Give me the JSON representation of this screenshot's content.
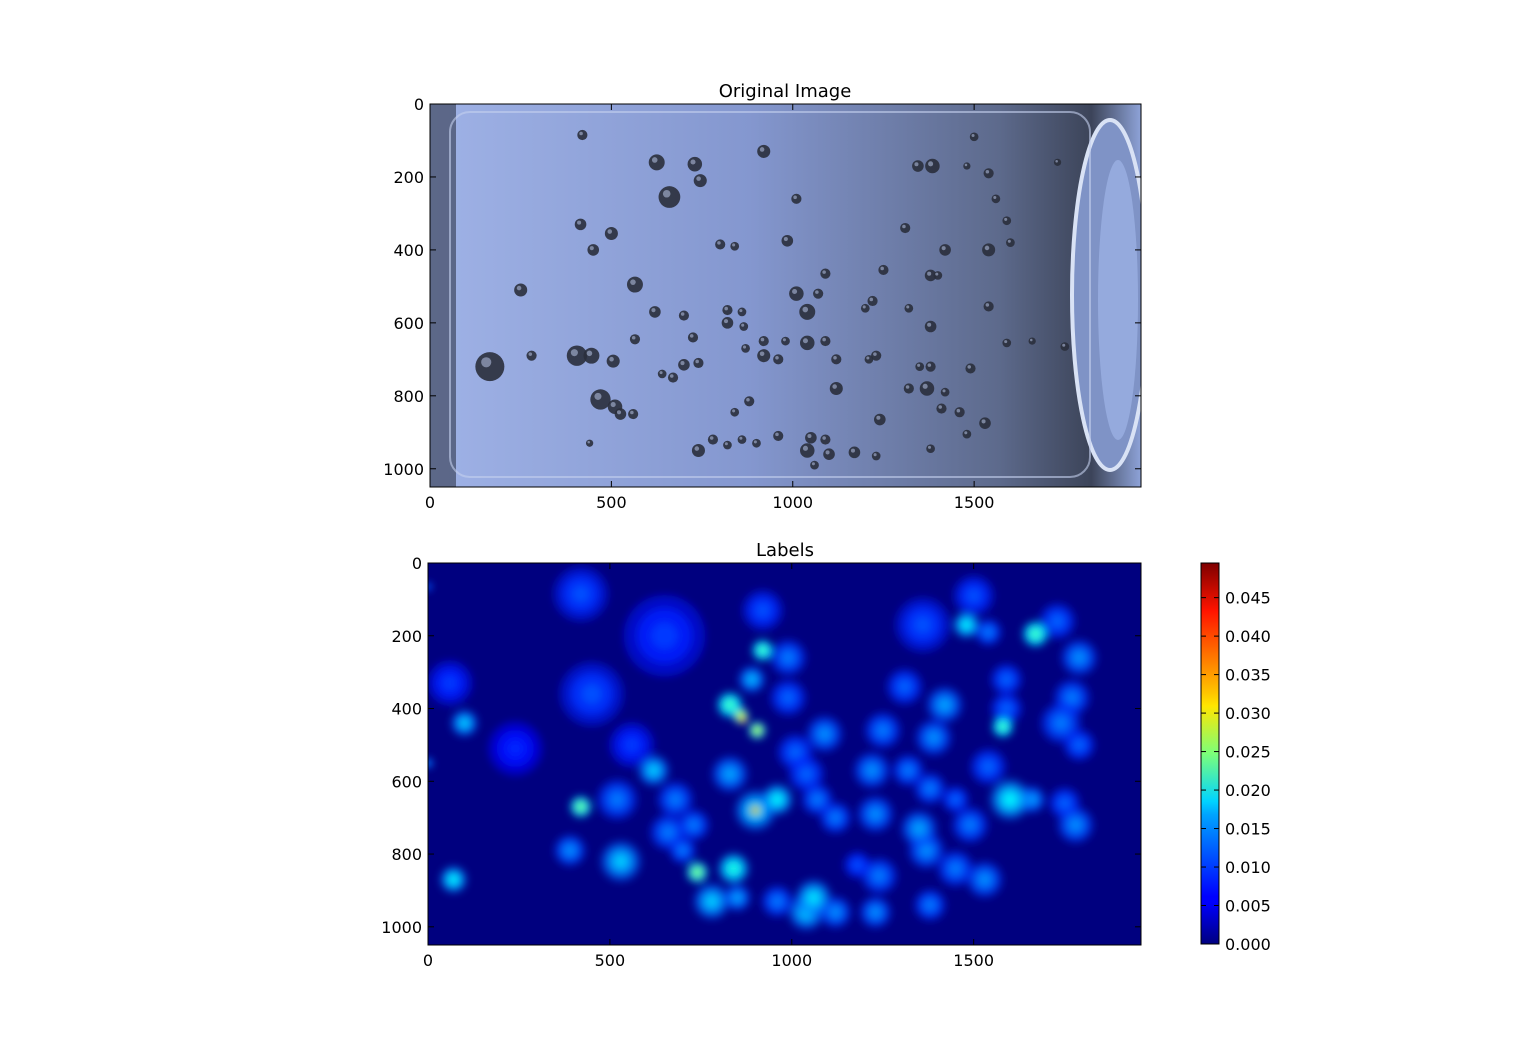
{
  "chart_data": [
    {
      "type": "image",
      "title": "Original Image",
      "xlim": [
        0,
        1960
      ],
      "ylim": [
        1050,
        0
      ],
      "xticks": [
        0,
        500,
        1000,
        1500
      ],
      "yticks": [
        0,
        200,
        400,
        600,
        800,
        1000
      ],
      "bubbles": [
        [
          420,
          85,
          14
        ],
        [
          625,
          160,
          22
        ],
        [
          730,
          165,
          20
        ],
        [
          745,
          210,
          18
        ],
        [
          660,
          255,
          30
        ],
        [
          920,
          130,
          18
        ],
        [
          1500,
          90,
          12
        ],
        [
          1345,
          170,
          16
        ],
        [
          1385,
          170,
          20
        ],
        [
          1480,
          170,
          10
        ],
        [
          1540,
          190,
          14
        ],
        [
          1730,
          160,
          10
        ],
        [
          1010,
          260,
          14
        ],
        [
          1560,
          260,
          12
        ],
        [
          1590,
          320,
          12
        ],
        [
          1310,
          340,
          14
        ],
        [
          415,
          330,
          16
        ],
        [
          500,
          355,
          18
        ],
        [
          450,
          400,
          16
        ],
        [
          800,
          385,
          14
        ],
        [
          840,
          390,
          12
        ],
        [
          985,
          375,
          16
        ],
        [
          1420,
          400,
          16
        ],
        [
          1540,
          400,
          18
        ],
        [
          1600,
          380,
          12
        ],
        [
          1250,
          455,
          14
        ],
        [
          1090,
          465,
          14
        ],
        [
          1380,
          470,
          16
        ],
        [
          1400,
          470,
          12
        ],
        [
          565,
          495,
          22
        ],
        [
          1010,
          520,
          20
        ],
        [
          1070,
          520,
          14
        ],
        [
          250,
          510,
          18
        ],
        [
          620,
          570,
          16
        ],
        [
          700,
          580,
          14
        ],
        [
          820,
          565,
          14
        ],
        [
          860,
          570,
          12
        ],
        [
          1040,
          570,
          22
        ],
        [
          1220,
          540,
          14
        ],
        [
          1200,
          560,
          12
        ],
        [
          1320,
          560,
          12
        ],
        [
          1540,
          555,
          14
        ],
        [
          820,
          600,
          16
        ],
        [
          865,
          610,
          12
        ],
        [
          1380,
          610,
          16
        ],
        [
          565,
          645,
          14
        ],
        [
          725,
          640,
          14
        ],
        [
          920,
          650,
          14
        ],
        [
          980,
          650,
          12
        ],
        [
          1040,
          655,
          20
        ],
        [
          1090,
          650,
          14
        ],
        [
          1590,
          655,
          12
        ],
        [
          1660,
          650,
          10
        ],
        [
          1750,
          665,
          12
        ],
        [
          405,
          690,
          28
        ],
        [
          445,
          690,
          22
        ],
        [
          505,
          705,
          18
        ],
        [
          870,
          670,
          12
        ],
        [
          920,
          690,
          18
        ],
        [
          960,
          700,
          14
        ],
        [
          1120,
          700,
          14
        ],
        [
          1230,
          690,
          14
        ],
        [
          1210,
          700,
          12
        ],
        [
          1350,
          720,
          12
        ],
        [
          1380,
          720,
          14
        ],
        [
          1490,
          725,
          14
        ],
        [
          700,
          715,
          16
        ],
        [
          740,
          710,
          14
        ],
        [
          640,
          740,
          12
        ],
        [
          670,
          750,
          14
        ],
        [
          165,
          720,
          40
        ],
        [
          280,
          690,
          14
        ],
        [
          1120,
          780,
          18
        ],
        [
          1320,
          780,
          14
        ],
        [
          1370,
          780,
          20
        ],
        [
          1420,
          790,
          12
        ],
        [
          470,
          810,
          28
        ],
        [
          510,
          830,
          20
        ],
        [
          525,
          850,
          16
        ],
        [
          560,
          850,
          14
        ],
        [
          880,
          815,
          14
        ],
        [
          840,
          845,
          12
        ],
        [
          1410,
          835,
          14
        ],
        [
          1460,
          845,
          14
        ],
        [
          1240,
          865,
          16
        ],
        [
          1530,
          875,
          16
        ],
        [
          780,
          920,
          14
        ],
        [
          820,
          935,
          12
        ],
        [
          860,
          920,
          12
        ],
        [
          900,
          930,
          12
        ],
        [
          960,
          910,
          14
        ],
        [
          1050,
          915,
          16
        ],
        [
          1090,
          920,
          14
        ],
        [
          1380,
          945,
          12
        ],
        [
          1480,
          905,
          12
        ],
        [
          740,
          950,
          18
        ],
        [
          1040,
          950,
          20
        ],
        [
          1100,
          960,
          16
        ],
        [
          1170,
          955,
          16
        ],
        [
          1230,
          965,
          12
        ],
        [
          1060,
          990,
          12
        ],
        [
          440,
          930,
          10
        ]
      ],
      "colors": {
        "background": "#8fa4d6",
        "bubble": "#2a2f3c",
        "dark_edge": "#1e2430"
      }
    },
    {
      "type": "heatmap",
      "title": "Labels",
      "colormap": "jet",
      "xlim": [
        0,
        1960
      ],
      "ylim": [
        1050,
        0
      ],
      "xticks": [
        0,
        500,
        1000,
        1500
      ],
      "yticks": [
        0,
        200,
        400,
        600,
        800,
        1000
      ],
      "colorbar": {
        "min": 0.0,
        "max": 0.0495,
        "ticks": [
          0.0,
          0.005,
          0.01,
          0.015,
          0.02,
          0.025,
          0.03,
          0.035,
          0.04,
          0.045
        ],
        "tick_labels": [
          "0.000",
          "0.005",
          "0.010",
          "0.015",
          "0.020",
          "0.025",
          "0.030",
          "0.035",
          "0.040",
          "0.045"
        ]
      },
      "blobs": [
        [
          420,
          85,
          60,
          0.01
        ],
        [
          650,
          200,
          90,
          0.009
        ],
        [
          920,
          130,
          45,
          0.01
        ],
        [
          1500,
          90,
          45,
          0.01
        ],
        [
          1360,
          170,
          60,
          0.01
        ],
        [
          1480,
          170,
          30,
          0.018
        ],
        [
          1540,
          190,
          30,
          0.012
        ],
        [
          1730,
          160,
          40,
          0.011
        ],
        [
          1670,
          195,
          30,
          0.022
        ],
        [
          1790,
          260,
          40,
          0.013
        ],
        [
          920,
          240,
          25,
          0.022
        ],
        [
          990,
          260,
          40,
          0.012
        ],
        [
          60,
          330,
          50,
          0.009
        ],
        [
          450,
          360,
          70,
          0.01
        ],
        [
          1310,
          340,
          40,
          0.011
        ],
        [
          1590,
          320,
          35,
          0.011
        ],
        [
          1770,
          370,
          40,
          0.012
        ],
        [
          890,
          320,
          30,
          0.015
        ],
        [
          990,
          370,
          40,
          0.011
        ],
        [
          830,
          390,
          30,
          0.022
        ],
        [
          860,
          420,
          18,
          0.03
        ],
        [
          865,
          430,
          10,
          0.04
        ],
        [
          905,
          460,
          20,
          0.028
        ],
        [
          100,
          440,
          30,
          0.016
        ],
        [
          1420,
          390,
          40,
          0.014
        ],
        [
          1580,
          450,
          25,
          0.022
        ],
        [
          1590,
          400,
          35,
          0.011
        ],
        [
          1090,
          470,
          40,
          0.013
        ],
        [
          1250,
          460,
          40,
          0.012
        ],
        [
          1390,
          480,
          40,
          0.013
        ],
        [
          1740,
          440,
          45,
          0.012
        ],
        [
          1790,
          500,
          35,
          0.011
        ],
        [
          240,
          510,
          60,
          0.008
        ],
        [
          560,
          500,
          50,
          0.009
        ],
        [
          1010,
          520,
          40,
          0.011
        ],
        [
          620,
          570,
          35,
          0.016
        ],
        [
          1220,
          570,
          40,
          0.013
        ],
        [
          1540,
          560,
          40,
          0.011
        ],
        [
          830,
          580,
          40,
          0.014
        ],
        [
          1040,
          580,
          40,
          0.011
        ],
        [
          1320,
          570,
          35,
          0.012
        ],
        [
          420,
          670,
          25,
          0.024
        ],
        [
          520,
          650,
          45,
          0.012
        ],
        [
          680,
          650,
          40,
          0.012
        ],
        [
          900,
          680,
          45,
          0.017
        ],
        [
          960,
          650,
          35,
          0.018
        ],
        [
          900,
          680,
          12,
          0.04
        ],
        [
          897,
          680,
          8,
          0.049
        ],
        [
          1600,
          650,
          45,
          0.018
        ],
        [
          1660,
          650,
          30,
          0.014
        ],
        [
          1380,
          620,
          35,
          0.012
        ],
        [
          1070,
          650,
          35,
          0.012
        ],
        [
          660,
          740,
          40,
          0.012
        ],
        [
          730,
          720,
          35,
          0.012
        ],
        [
          1120,
          700,
          35,
          0.012
        ],
        [
          1230,
          690,
          40,
          0.013
        ],
        [
          1350,
          730,
          40,
          0.014
        ],
        [
          1490,
          720,
          40,
          0.012
        ],
        [
          1780,
          720,
          40,
          0.013
        ],
        [
          1750,
          660,
          35,
          0.011
        ],
        [
          390,
          790,
          35,
          0.013
        ],
        [
          530,
          820,
          45,
          0.016
        ],
        [
          740,
          850,
          25,
          0.025
        ],
        [
          840,
          840,
          35,
          0.02
        ],
        [
          1240,
          860,
          40,
          0.012
        ],
        [
          1370,
          790,
          40,
          0.013
        ],
        [
          1450,
          840,
          40,
          0.012
        ],
        [
          1530,
          870,
          40,
          0.013
        ],
        [
          780,
          930,
          40,
          0.016
        ],
        [
          850,
          920,
          30,
          0.014
        ],
        [
          960,
          930,
          35,
          0.012
        ],
        [
          1060,
          920,
          40,
          0.017
        ],
        [
          1040,
          960,
          40,
          0.016
        ],
        [
          1120,
          960,
          35,
          0.013
        ],
        [
          1230,
          960,
          35,
          0.013
        ],
        [
          1380,
          940,
          35,
          0.012
        ],
        [
          70,
          870,
          30,
          0.018
        ],
        [
          700,
          790,
          30,
          0.012
        ],
        [
          1180,
          830,
          30,
          0.01
        ],
        [
          1450,
          650,
          30,
          0.011
        ],
        [
          0,
          65,
          10,
          0.012
        ],
        [
          0,
          550,
          12,
          0.014
        ]
      ]
    }
  ]
}
